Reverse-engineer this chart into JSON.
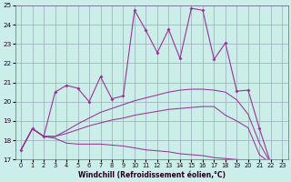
{
  "bg_color": "#cceee8",
  "grid_color": "#99aabb",
  "line_color": "#993399",
  "xlim_min": -0.5,
  "xlim_max": 23.5,
  "ylim_min": 17,
  "ylim_max": 25,
  "yticks": [
    17,
    18,
    19,
    20,
    21,
    22,
    23,
    24,
    25
  ],
  "xticks": [
    0,
    1,
    2,
    3,
    4,
    5,
    6,
    7,
    8,
    9,
    10,
    11,
    12,
    13,
    14,
    15,
    16,
    17,
    18,
    19,
    20,
    21,
    22,
    23
  ],
  "xlabel": "Windchill (Refroidissement éolien,°C)",
  "series1_x": [
    0,
    1,
    2,
    3,
    4,
    5,
    6,
    7,
    8,
    9,
    10,
    11,
    12,
    13,
    14,
    15,
    16,
    17,
    18,
    19,
    20,
    21,
    22,
    23
  ],
  "series1_y": [
    17.5,
    18.6,
    18.2,
    20.5,
    20.85,
    20.7,
    20.0,
    21.3,
    20.15,
    20.3,
    24.75,
    23.7,
    22.55,
    23.75,
    22.25,
    24.85,
    24.75,
    22.2,
    23.05,
    20.55,
    20.6,
    18.6,
    16.8,
    16.7
  ],
  "series2_x": [
    0,
    1,
    2,
    3,
    4,
    5,
    6,
    7,
    8,
    9,
    10,
    11,
    12,
    13,
    14,
    15,
    16,
    17,
    18,
    19,
    20,
    21,
    22,
    23
  ],
  "series2_y": [
    17.5,
    18.6,
    18.2,
    18.1,
    17.85,
    17.8,
    17.8,
    17.8,
    17.75,
    17.7,
    17.6,
    17.5,
    17.45,
    17.4,
    17.3,
    17.25,
    17.2,
    17.1,
    17.05,
    17.0,
    16.95,
    16.9,
    16.8,
    16.7
  ],
  "series3_x": [
    0,
    1,
    2,
    3,
    4,
    5,
    6,
    7,
    8,
    9,
    10,
    11,
    12,
    13,
    14,
    15,
    16,
    17,
    18,
    19,
    20,
    21,
    22,
    23
  ],
  "series3_y": [
    17.5,
    18.6,
    18.2,
    18.2,
    18.35,
    18.55,
    18.75,
    18.9,
    19.05,
    19.15,
    19.3,
    19.4,
    19.5,
    19.6,
    19.65,
    19.7,
    19.75,
    19.75,
    19.3,
    19.0,
    18.65,
    17.25,
    16.8,
    16.7
  ],
  "series4_x": [
    0,
    1,
    2,
    3,
    4,
    5,
    6,
    7,
    8,
    9,
    10,
    11,
    12,
    13,
    14,
    15,
    16,
    17,
    18,
    19,
    20,
    21,
    22,
    23
  ],
  "series4_y": [
    17.5,
    18.6,
    18.2,
    18.2,
    18.5,
    18.85,
    19.15,
    19.45,
    19.65,
    19.85,
    20.05,
    20.2,
    20.35,
    20.5,
    20.6,
    20.65,
    20.65,
    20.6,
    20.5,
    20.1,
    19.35,
    17.85,
    16.8,
    16.7
  ]
}
